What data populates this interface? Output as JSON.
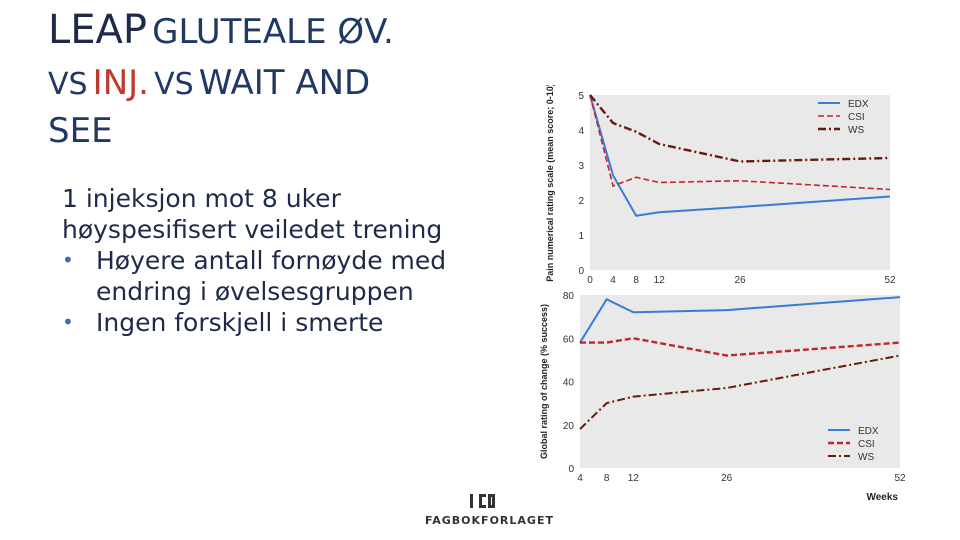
{
  "slide": {
    "title_part1": "LEAP",
    "title_part2": "GLUTEALE ØV.",
    "title_vs1": "VS",
    "title_inj": "INJ.",
    "title_vs2": "VS",
    "title_wait": "WAIT AND",
    "title_see": "SEE",
    "body_line1": "1 injeksjon mot 8 uker",
    "body_line2": "høyspesifisert veiledet trening",
    "bullets": [
      "Høyere antall fornøyde med endring i øvelsesgruppen",
      "Ingen forskjell i smerte"
    ],
    "bullet_line_a1": "Høyere antall fornøyde med",
    "bullet_line_a2": "endring i øvelsesgruppen",
    "bullet_line_b": "Ingen forskjell i smerte",
    "logo_text": "FAGBOKFORLAGET",
    "logo_mark": "ICO"
  },
  "colors": {
    "edx": "#3a7bd5",
    "csi": "#c0272d",
    "ws": "#6b1a0a",
    "plot_bg": "#e9e9e9"
  },
  "chart_data": [
    {
      "type": "line",
      "ylabel": "Pain numerical rating scale (mean score; 0-10)",
      "xlabel": "",
      "ylim": [
        0,
        5
      ],
      "yticks": [
        0,
        1,
        2,
        3,
        4,
        5
      ],
      "xticks": [
        0,
        4,
        8,
        12,
        26,
        52
      ],
      "grid": false,
      "legend_position": "top-right",
      "series": [
        {
          "name": "EDX",
          "x": [
            0,
            4,
            8,
            12,
            26,
            52
          ],
          "y": [
            5.0,
            2.7,
            1.55,
            1.65,
            1.8,
            2.1
          ]
        },
        {
          "name": "CSI",
          "x": [
            0,
            4,
            8,
            12,
            26,
            52
          ],
          "y": [
            5.0,
            2.4,
            2.65,
            2.5,
            2.55,
            2.3
          ]
        },
        {
          "name": "WS",
          "x": [
            0,
            4,
            8,
            12,
            26,
            52
          ],
          "y": [
            5.0,
            4.2,
            3.95,
            3.6,
            3.1,
            3.2
          ]
        }
      ]
    },
    {
      "type": "line",
      "ylabel": "Global rating of change (% success)",
      "xlabel": "Weeks",
      "ylim": [
        0,
        80
      ],
      "yticks": [
        0,
        20,
        40,
        60,
        80
      ],
      "xticks": [
        4,
        8,
        12,
        26,
        52
      ],
      "grid": false,
      "legend_position": "bottom-right",
      "series": [
        {
          "name": "EDX",
          "x": [
            4,
            8,
            12,
            26,
            52
          ],
          "y": [
            58,
            78,
            72,
            73,
            79
          ]
        },
        {
          "name": "CSI",
          "x": [
            4,
            8,
            12,
            26,
            52
          ],
          "y": [
            58,
            58,
            60,
            52,
            58
          ]
        },
        {
          "name": "WS",
          "x": [
            4,
            8,
            12,
            26,
            52
          ],
          "y": [
            18,
            30,
            33,
            37,
            52
          ]
        }
      ]
    }
  ]
}
